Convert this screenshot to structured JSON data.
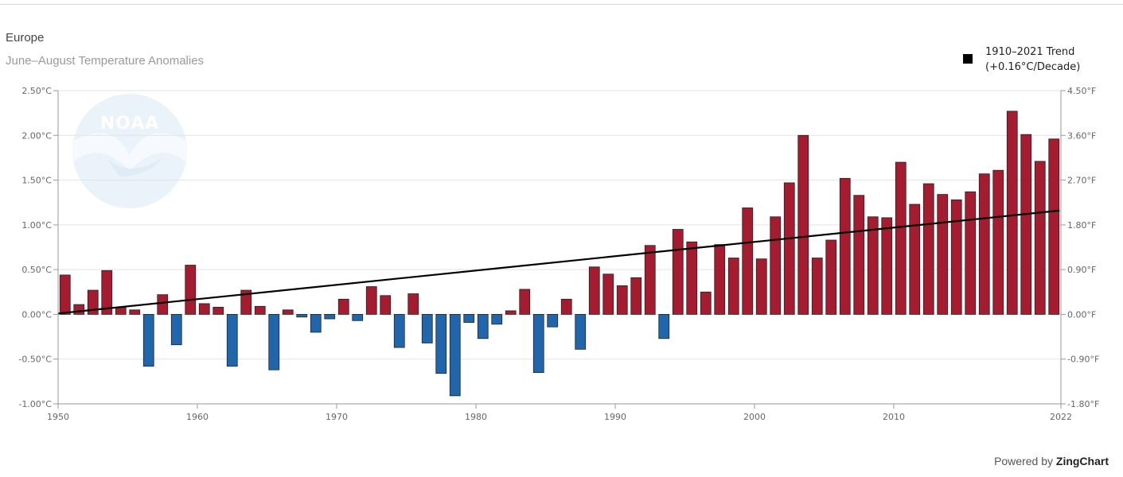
{
  "header": {
    "title": "Europe",
    "subtitle": "June–August Temperature Anomalies"
  },
  "legend": {
    "line1": "1910–2021 Trend",
    "line2": "(+0.16°C/Decade)",
    "swatch_color": "#000000"
  },
  "watermark": {
    "text": "NOAA"
  },
  "credit": {
    "prefix": "Powered by",
    "brand": "ZingChart"
  },
  "chart_data": {
    "type": "bar",
    "title": "Europe",
    "subtitle": "June–August Temperature Anomalies",
    "years": [
      1950,
      1951,
      1952,
      1953,
      1954,
      1955,
      1956,
      1957,
      1958,
      1959,
      1960,
      1961,
      1962,
      1963,
      1964,
      1965,
      1966,
      1967,
      1968,
      1969,
      1970,
      1971,
      1972,
      1973,
      1974,
      1975,
      1976,
      1977,
      1978,
      1979,
      1980,
      1981,
      1982,
      1983,
      1984,
      1985,
      1986,
      1987,
      1988,
      1989,
      1990,
      1991,
      1992,
      1993,
      1994,
      1995,
      1996,
      1997,
      1998,
      1999,
      2000,
      2001,
      2002,
      2003,
      2004,
      2005,
      2006,
      2007,
      2008,
      2009,
      2010,
      2011,
      2012,
      2013,
      2014,
      2015,
      2016,
      2017,
      2018,
      2019,
      2020,
      2021
    ],
    "values": [
      0.44,
      0.11,
      0.27,
      0.49,
      0.08,
      0.05,
      -0.58,
      0.22,
      -0.34,
      0.55,
      0.12,
      0.08,
      -0.58,
      0.27,
      0.09,
      -0.62,
      0.05,
      -0.03,
      -0.2,
      -0.05,
      0.17,
      -0.07,
      0.31,
      0.21,
      -0.37,
      0.23,
      -0.32,
      -0.66,
      -0.91,
      -0.09,
      -0.27,
      -0.11,
      0.04,
      0.28,
      -0.65,
      -0.14,
      0.17,
      -0.39,
      0.53,
      0.45,
      0.32,
      0.41,
      0.77,
      -0.27,
      0.95,
      0.81,
      0.25,
      0.78,
      0.63,
      1.19,
      0.62,
      1.09,
      1.47,
      2.0,
      0.63,
      0.83,
      1.52,
      1.33,
      1.09,
      1.08,
      1.7,
      1.23,
      1.46,
      1.34,
      1.28,
      1.37,
      1.57,
      1.61,
      2.27,
      2.01,
      1.71,
      1.96
    ],
    "colors": {
      "positive": "#a51c30",
      "negative": "#2166ac",
      "outline": "#222222",
      "trend": "#000000"
    },
    "trend": {
      "label": "1910–2021 Trend (+0.16°C/Decade)",
      "start": [
        1950,
        0.01
      ],
      "end": [
        2021,
        1.16
      ]
    },
    "xlim": [
      1950,
      2022
    ],
    "xticks": [
      "1950",
      "1960",
      "1970",
      "1980",
      "1990",
      "2000",
      "2010",
      "2022"
    ],
    "ylim": [
      -1.0,
      2.5
    ],
    "yticks_left": [
      "-1.00°C",
      "-0.50°C",
      "0.00°C",
      "0.50°C",
      "1.00°C",
      "1.50°C",
      "2.00°C",
      "2.50°C"
    ],
    "yticks_right": [
      "-1.80°F",
      "-0.90°F",
      "0.00°F",
      "0.90°F",
      "1.80°F",
      "2.70°F",
      "3.60°F",
      "4.50°F"
    ],
    "grid": true
  }
}
